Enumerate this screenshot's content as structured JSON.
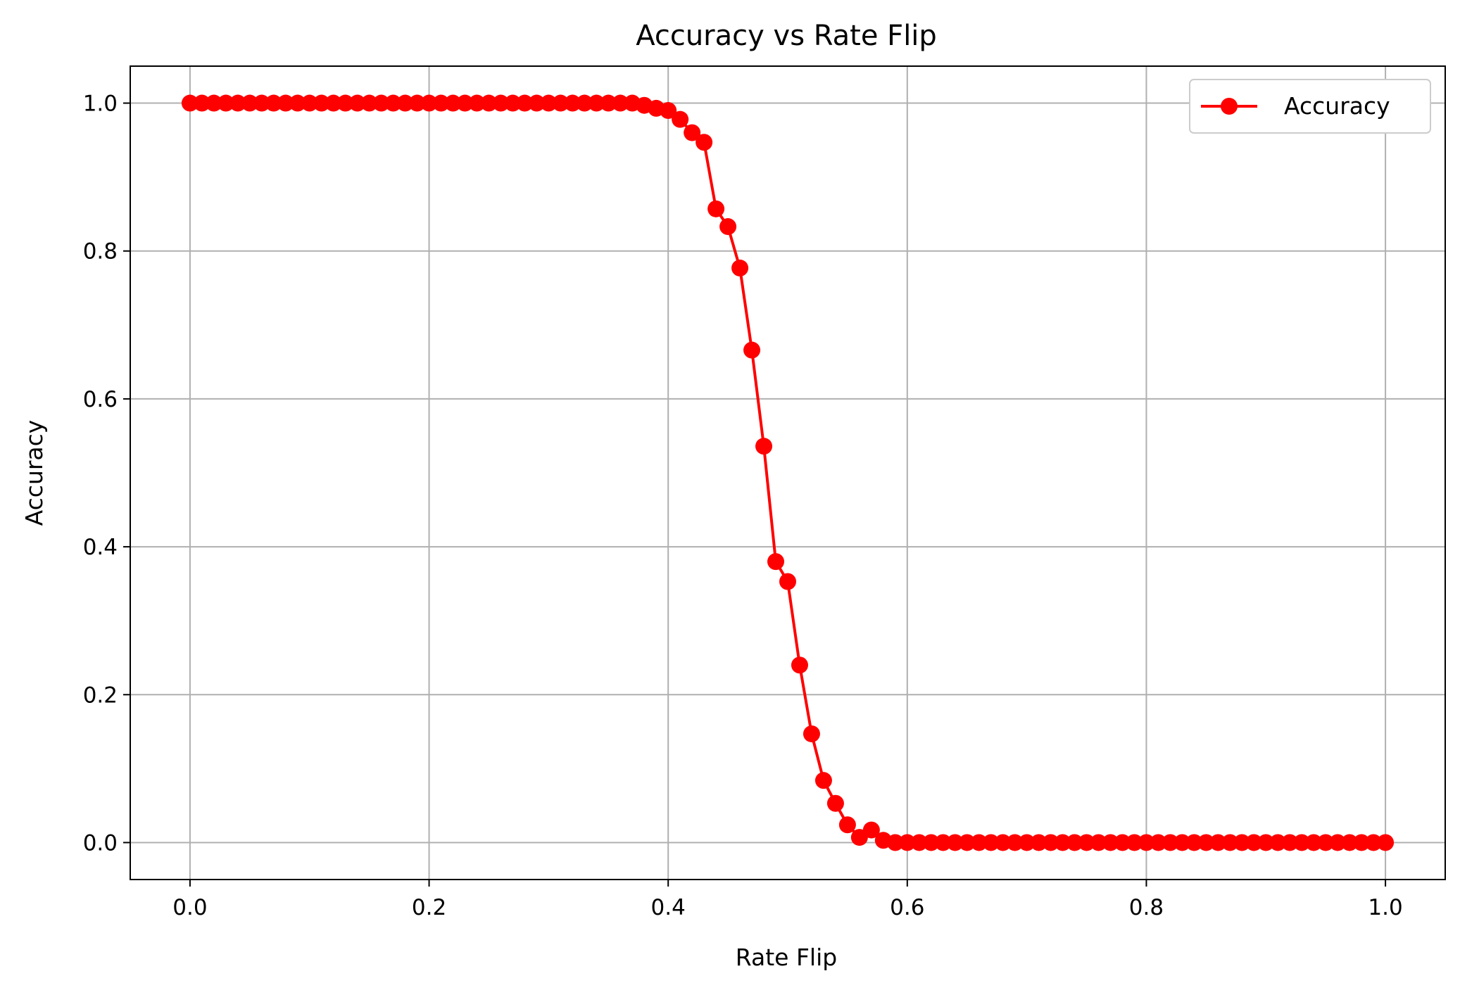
{
  "chart_data": {
    "type": "line",
    "title": "Accuracy vs Rate Flip",
    "xlabel": "Rate Flip",
    "ylabel": "Accuracy",
    "xlim": [
      -0.05,
      1.05
    ],
    "ylim": [
      -0.05,
      1.05
    ],
    "x_ticks": [
      "0.0",
      "0.2",
      "0.4",
      "0.6",
      "0.8",
      "1.0"
    ],
    "y_ticks": [
      "0.0",
      "0.2",
      "0.4",
      "0.6",
      "0.8",
      "1.0"
    ],
    "grid": true,
    "legend_position": "top-right",
    "colors": {
      "series": "#ff0000",
      "grid": "#b0b0b0",
      "axes": "#000000"
    },
    "series": [
      {
        "name": "Accuracy",
        "marker": "circle",
        "x": [
          0.0,
          0.01,
          0.02,
          0.03,
          0.04,
          0.05,
          0.06,
          0.07,
          0.08,
          0.09,
          0.1,
          0.11,
          0.12,
          0.13,
          0.14,
          0.15,
          0.16,
          0.17,
          0.18,
          0.19,
          0.2,
          0.21,
          0.22,
          0.23,
          0.24,
          0.25,
          0.26,
          0.27,
          0.28,
          0.29,
          0.3,
          0.31,
          0.32,
          0.33,
          0.34,
          0.35,
          0.36,
          0.37,
          0.38,
          0.39,
          0.4,
          0.41,
          0.42,
          0.43,
          0.44,
          0.45,
          0.46,
          0.47,
          0.48,
          0.49,
          0.5,
          0.51,
          0.52,
          0.53,
          0.54,
          0.55,
          0.56,
          0.57,
          0.58,
          0.59,
          0.6,
          0.61,
          0.62,
          0.63,
          0.64,
          0.65,
          0.66,
          0.67,
          0.68,
          0.69,
          0.7,
          0.71,
          0.72,
          0.73,
          0.74,
          0.75,
          0.76,
          0.77,
          0.78,
          0.79,
          0.8,
          0.81,
          0.82,
          0.83,
          0.84,
          0.85,
          0.86,
          0.87,
          0.88,
          0.89,
          0.9,
          0.91,
          0.92,
          0.93,
          0.94,
          0.95,
          0.96,
          0.97,
          0.98,
          0.99,
          1.0
        ],
        "y": [
          1.0,
          1.0,
          1.0,
          1.0,
          1.0,
          1.0,
          1.0,
          1.0,
          1.0,
          1.0,
          1.0,
          1.0,
          1.0,
          1.0,
          1.0,
          1.0,
          1.0,
          1.0,
          1.0,
          1.0,
          1.0,
          1.0,
          1.0,
          1.0,
          1.0,
          1.0,
          1.0,
          1.0,
          1.0,
          1.0,
          1.0,
          1.0,
          1.0,
          1.0,
          1.0,
          1.0,
          1.0,
          1.0,
          0.997,
          0.993,
          0.99,
          0.978,
          0.96,
          0.947,
          0.857,
          0.833,
          0.777,
          0.666,
          0.536,
          0.38,
          0.353,
          0.24,
          0.147,
          0.084,
          0.053,
          0.024,
          0.007,
          0.017,
          0.003,
          0.0,
          0.0,
          0.0,
          0.0,
          0.0,
          0.0,
          0.0,
          0.0,
          0.0,
          0.0,
          0.0,
          0.0,
          0.0,
          0.0,
          0.0,
          0.0,
          0.0,
          0.0,
          0.0,
          0.0,
          0.0,
          0.0,
          0.0,
          0.0,
          0.0,
          0.0,
          0.0,
          0.0,
          0.0,
          0.0,
          0.0,
          0.0,
          0.0,
          0.0,
          0.0,
          0.0,
          0.0,
          0.0,
          0.0,
          0.0,
          0.0,
          0.0
        ]
      }
    ]
  }
}
